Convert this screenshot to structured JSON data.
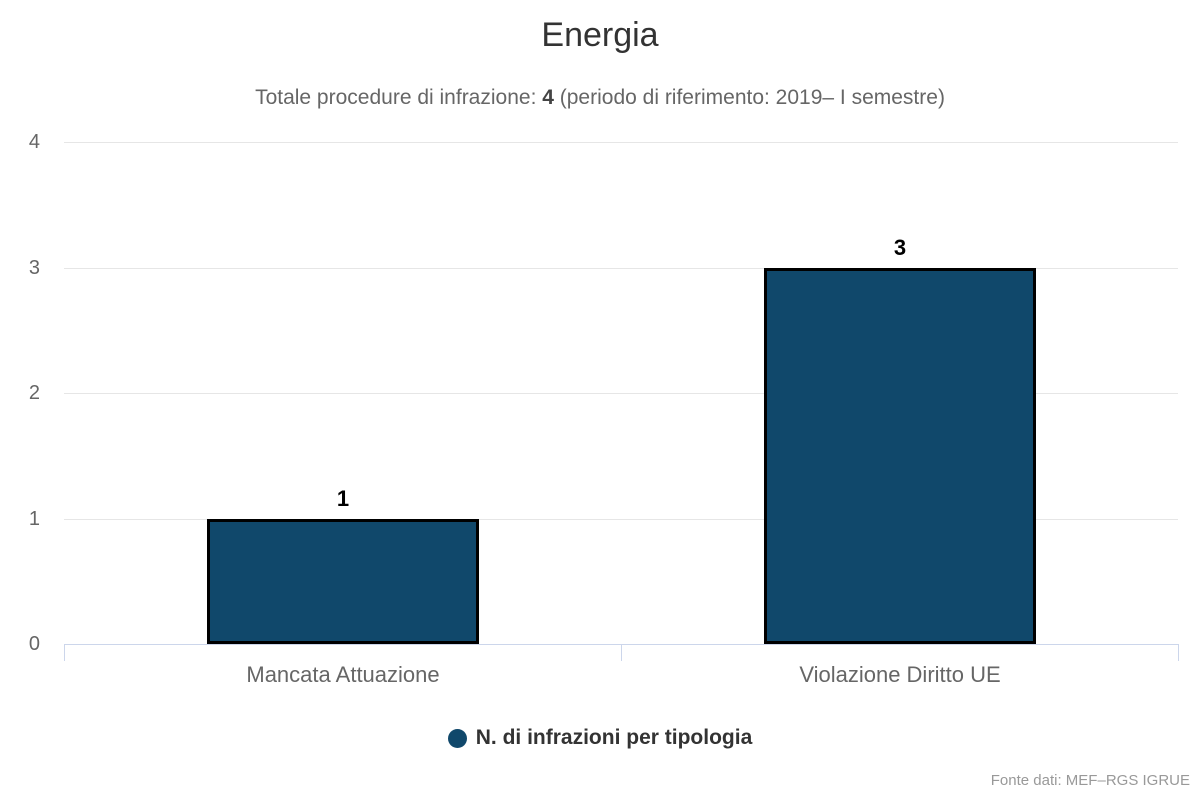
{
  "chart": {
    "title": "Energia",
    "subtitle_prefix": "Totale procedure di infrazione: ",
    "total": "4",
    "subtitle_suffix": " (periodo di riferimento: 2019– I semestre)",
    "legend_label": "N. di infrazioni per tipologia",
    "credits": "Fonte dati: MEF–RGS IGRUE"
  },
  "chart_data": {
    "type": "bar",
    "title": "Energia",
    "subtitle": "Totale procedure di infrazione: 4 (periodo di riferimento: 2019– I semestre)",
    "categories": [
      "Mancata Attuazione",
      "Violazione Diritto UE"
    ],
    "series": [
      {
        "name": "N. di infrazioni per tipologia",
        "values": [
          1,
          3
        ]
      }
    ],
    "data_labels": [
      "1",
      "3"
    ],
    "xlabel": "",
    "ylabel": "",
    "ylim": [
      0,
      4
    ],
    "yticks": [
      0,
      1,
      2,
      3,
      4
    ],
    "grid": true,
    "legend_position": "bottom",
    "credits": "Fonte dati: MEF–RGS IGRUE"
  },
  "colors": {
    "bar_fill": "#10486b",
    "bar_border": "#000000",
    "grid": "#e6e6e6",
    "axis": "#ccd6eb",
    "title": "#333333",
    "subtitle": "#666666",
    "tick_label": "#666666",
    "data_label": "#000000",
    "legend_text": "#333333",
    "credits": "#999999"
  }
}
